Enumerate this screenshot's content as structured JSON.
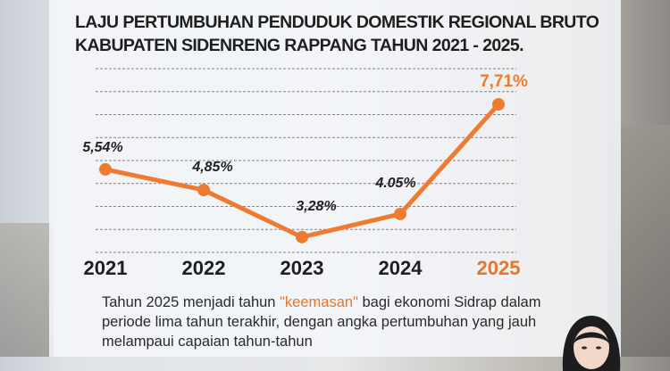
{
  "title_line1": "LAJU PERTUMBUHAN PENDUDUK DOMESTIK REGIONAL BRUTO",
  "title_line2": "KABUPATEN SIDENRENG RAPPANG TAHUN 2021 - 2025.",
  "colors": {
    "accent": "#e8752d",
    "text": "#1e1e1e"
  },
  "chart_data": {
    "type": "line",
    "title": "LAJU PERTUMBUHAN PENDUDUK DOMESTIK REGIONAL BRUTO KABUPATEN SIDENRENG RAPPANG TAHUN 2021 - 2025.",
    "categories": [
      "2021",
      "2022",
      "2023",
      "2024",
      "2025"
    ],
    "values": [
      5.54,
      4.85,
      3.28,
      4.05,
      7.71
    ],
    "data_labels": [
      "5,54%",
      "4,85%",
      "3,28%",
      "4.05%",
      "7,71%"
    ],
    "highlight_index": 4,
    "unit": "%",
    "ylim": [
      2.77,
      8.9
    ],
    "grid": true,
    "gridlines": 9,
    "xlabel": "",
    "ylabel": ""
  },
  "description": {
    "before": "Tahun 2025 menjadi tahun ",
    "highlight": "\"keemasan\"",
    "after": " bagi ekonomi Sidrap dalam periode lima tahun terakhir, dengan angka pertumbuhan yang jauh melampaui capaian tahun-tahun"
  }
}
